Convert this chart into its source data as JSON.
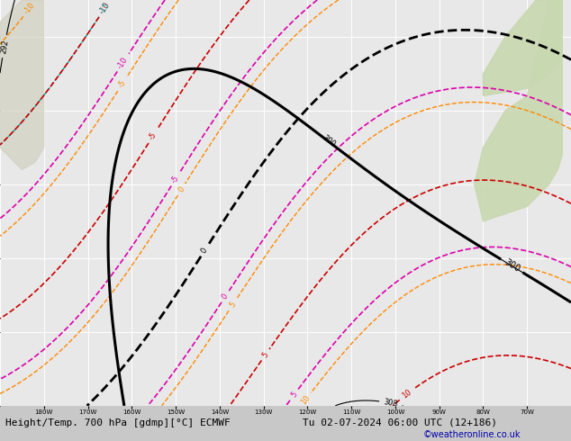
{
  "title_left": "Height/Temp. 700 hPa [gdmp][°C] ECMWF",
  "title_right": "Tu 02-07-2024 06:00 UTC (12+186)",
  "copyright": "©weatheronline.co.uk",
  "bg_color": "#e8e8e8",
  "bottom_text_color": "#0000aa",
  "label_fontsize": 6,
  "title_fontsize": 8
}
